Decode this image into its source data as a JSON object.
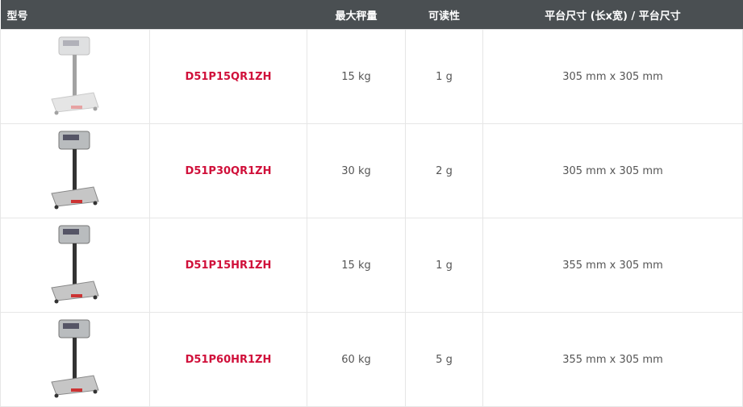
{
  "header": {
    "model": "型号",
    "capacity": "最大秤量",
    "readability": "可读性",
    "platform": "平台尺寸 (长x宽) / 平台尺寸"
  },
  "rows": [
    {
      "image": "scale-image",
      "model": "D51P15QR1ZH",
      "capacity": "15 kg",
      "readability": "1 g",
      "platform": "305 mm x 305 mm"
    },
    {
      "image": "scale-image",
      "model": "D51P30QR1ZH",
      "capacity": "30 kg",
      "readability": "2 g",
      "platform": "305 mm x 305 mm"
    },
    {
      "image": "scale-image",
      "model": "D51P15HR1ZH",
      "capacity": "15 kg",
      "readability": "1 g",
      "platform": "355 mm x 305 mm"
    },
    {
      "image": "scale-image",
      "model": "D51P60HR1ZH",
      "capacity": "60 kg",
      "readability": "5 g",
      "platform": "355 mm x 305 mm"
    }
  ],
  "colors": {
    "header_bg": "#4a4f52",
    "model_text": "#d0103a"
  }
}
